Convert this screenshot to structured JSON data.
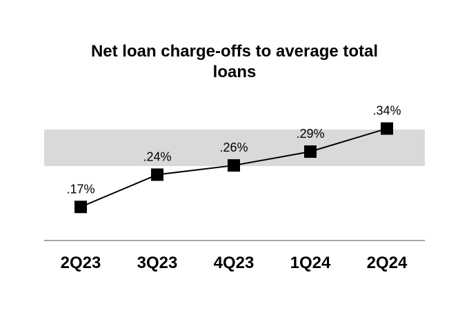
{
  "chart_data": {
    "type": "line",
    "title_line1": "Net loan charge-offs to average total",
    "title_line2": "loans",
    "categories": [
      "2Q23",
      "3Q23",
      "4Q23",
      "1Q24",
      "2Q24"
    ],
    "values": [
      0.17,
      0.24,
      0.26,
      0.29,
      0.34
    ],
    "data_labels": [
      ".17%",
      ".24%",
      ".26%",
      ".29%",
      ".34%"
    ],
    "xlabel": "",
    "ylabel": "",
    "ylim": [
      0,
      0.6
    ],
    "grid": false,
    "legend": "none",
    "colors": {
      "line": "#000000",
      "marker": "#000000",
      "band": "#d9d9d9",
      "axis": "#a6a6a6"
    }
  }
}
